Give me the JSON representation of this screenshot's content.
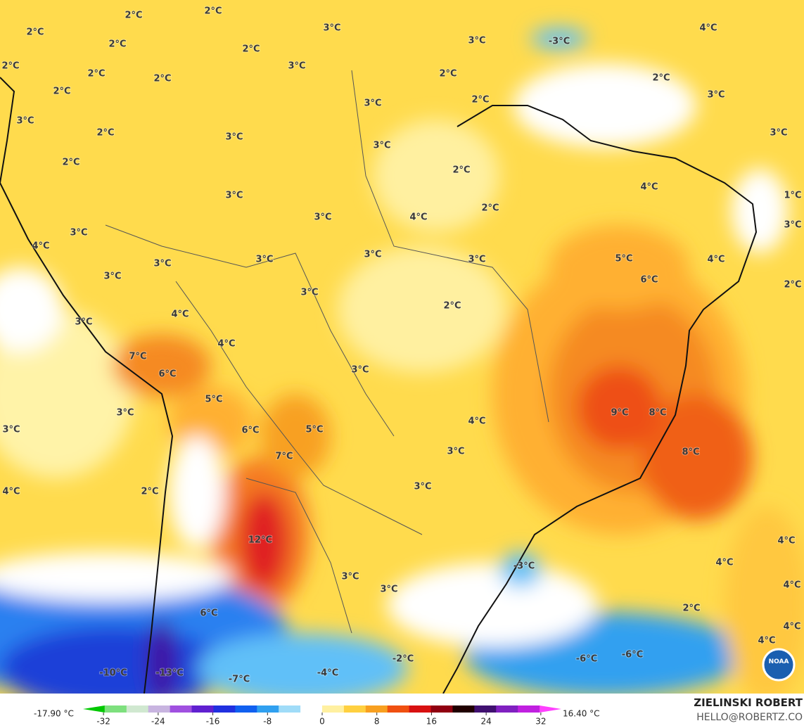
{
  "map_labels": [
    "2°C",
    "2°C",
    "3°C",
    "2°C",
    "2°C",
    "2°C",
    "3°C",
    "-3°C",
    "4°C",
    "2°C",
    "2°C",
    "2°C",
    "3°C",
    "2°C",
    "2°C",
    "3°C",
    "2°C",
    "3°C",
    "2°C",
    "2°C",
    "3°C",
    "3°C",
    "3°C",
    "3°C",
    "2°C",
    "2°C",
    "3°C",
    "4°C",
    "1°C",
    "3°C",
    "4°C",
    "2°C",
    "3°C",
    "3°C",
    "4°C",
    "3°C",
    "3°C",
    "3°C",
    "3°C",
    "5°C",
    "4°C",
    "3°C",
    "6°C",
    "2°C",
    "3°C",
    "2°C",
    "4°C",
    "3°C",
    "4°C",
    "7°C",
    "6°C",
    "3°C",
    "5°C",
    "3°C",
    "9°C",
    "8°C",
    "4°C",
    "3°C",
    "6°C",
    "5°C",
    "7°C",
    "3°C",
    "8°C",
    "4°C",
    "2°C",
    "3°C",
    "12°C",
    "4°C",
    "-3°C",
    "4°C",
    "3°C",
    "3°C",
    "4°C",
    "2°C",
    "6°C",
    "4°C",
    "4°C",
    "-2°C",
    "-6°C",
    "-6°C",
    "-10°C",
    "-13°C",
    "-7°C",
    "-4°C"
  ],
  "colorbar": {
    "min_label": "-17.90 °C",
    "max_label": "16.40 °C",
    "lim": [
      -35,
      35
    ],
    "ticks": [
      -32,
      -24,
      -16,
      -8,
      0,
      8,
      16,
      24,
      32
    ],
    "colors": [
      "#00c800",
      "#7ee07e",
      "#d0e8d0",
      "#c8b4e0",
      "#a050e0",
      "#6020d0",
      "#2030e0",
      "#1060f0",
      "#30a0f0",
      "#a0dcf8",
      "#ffffff",
      "#fff0a0",
      "#ffd040",
      "#f8a020",
      "#f05010",
      "#d81010",
      "#900010",
      "#200000",
      "#401070",
      "#8020c0",
      "#c020e0",
      "#ff40ff"
    ]
  },
  "credit": {
    "name": "ZIELINSKI ROBERT",
    "site": "HELLO@ROBERTZ.CO"
  },
  "logo": "NOAA"
}
